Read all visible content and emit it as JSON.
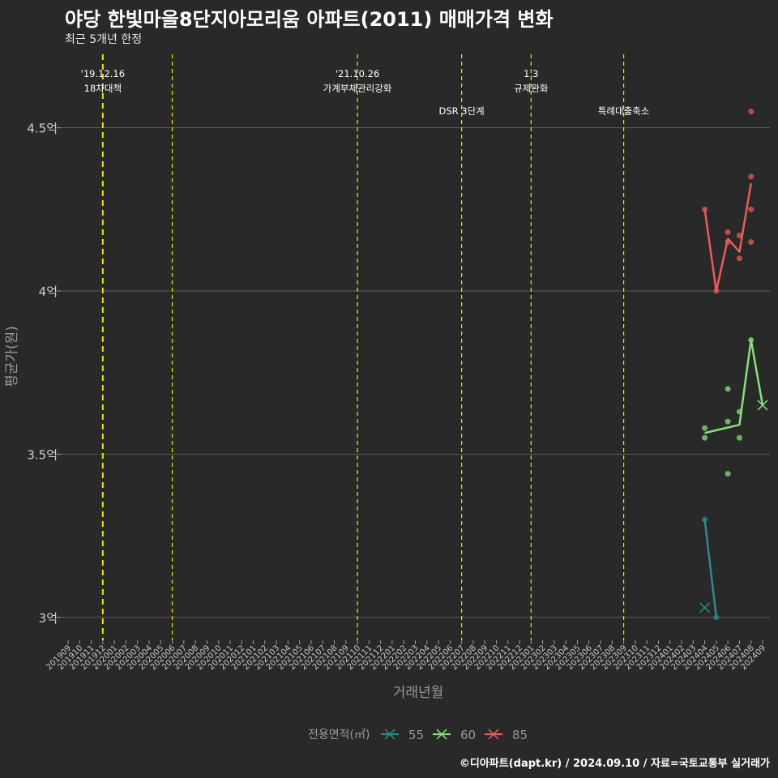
{
  "header": {
    "title": "야당 한빛마을8단지아모리움 아파트(2011) 매매가격 변화",
    "subtitle": "최근 5개년 한정"
  },
  "caption": "©디아파트(dapt.kr) / 2024.09.10 / 자료=국토교통부 실거래가",
  "colors": {
    "background": "#292929",
    "grid": "#5a5a5a",
    "event_line": "#e8e800",
    "series_55": "#2a8c8c",
    "series_60": "#86e07a",
    "series_85": "#e85c5c"
  },
  "chart_data": {
    "type": "line",
    "title": "야당 한빛마을8단지아모리움 아파트(2011) 매매가격 변화",
    "xlabel": "거래년월",
    "ylabel": "평균가(원)",
    "ylim": [
      2.93,
      4.73
    ],
    "yticks": [
      {
        "value": 3.0,
        "label": "3억"
      },
      {
        "value": 3.5,
        "label": "3.5억"
      },
      {
        "value": 4.0,
        "label": "4억"
      },
      {
        "value": 4.5,
        "label": "4.5억"
      }
    ],
    "categories": [
      "201909",
      "201910",
      "201911",
      "201912",
      "202001",
      "202002",
      "202003",
      "202004",
      "202005",
      "202006",
      "202007",
      "202008",
      "202009",
      "202010",
      "202011",
      "202012",
      "202101",
      "202102",
      "202103",
      "202104",
      "202105",
      "202106",
      "202107",
      "202108",
      "202109",
      "202110",
      "202111",
      "202112",
      "202201",
      "202202",
      "202203",
      "202204",
      "202205",
      "202206",
      "202207",
      "202208",
      "202209",
      "202210",
      "202211",
      "202212",
      "202301",
      "202302",
      "202303",
      "202304",
      "202305",
      "202306",
      "202307",
      "202308",
      "202309",
      "202310",
      "202311",
      "202312",
      "202401",
      "202402",
      "202403",
      "202404",
      "202405",
      "202406",
      "202407",
      "202408",
      "202409"
    ],
    "events": [
      {
        "x": "201912",
        "label": "'19.12.16\n18차대책",
        "thick": true
      },
      {
        "x": "202006",
        "label": "",
        "thick": false
      },
      {
        "x": "202110",
        "label": "'21.10.26\n가계부채관리강화",
        "thick": false
      },
      {
        "x": "202207",
        "label": "DSR 3단계",
        "thick": false
      },
      {
        "x": "202301",
        "label": "1.3\n규제완화",
        "thick": false
      },
      {
        "x": "202309",
        "label": "특례대출축소",
        "thick": false
      }
    ],
    "legend": {
      "title": "전용면적(㎡)",
      "position": "bottom"
    },
    "series": [
      {
        "name": "55",
        "color": "#2a8c8c",
        "line": [
          {
            "x": "202404",
            "y": 3.3
          },
          {
            "x": "202405",
            "y": 3.0
          }
        ],
        "points": [
          {
            "x": "202404",
            "y": 3.3
          },
          {
            "x": "202405",
            "y": 3.0
          }
        ],
        "crosses": [
          {
            "x": "202404",
            "y": 3.03
          }
        ]
      },
      {
        "name": "60",
        "color": "#86e07a",
        "line": [
          {
            "x": "202404",
            "y": 3.565
          },
          {
            "x": "202407",
            "y": 3.59
          },
          {
            "x": "202408",
            "y": 3.85
          },
          {
            "x": "202409",
            "y": 3.65
          }
        ],
        "points": [
          {
            "x": "202404",
            "y": 3.58
          },
          {
            "x": "202404",
            "y": 3.55
          },
          {
            "x": "202406",
            "y": 3.7
          },
          {
            "x": "202406",
            "y": 3.6
          },
          {
            "x": "202406",
            "y": 3.44
          },
          {
            "x": "202407",
            "y": 3.63
          },
          {
            "x": "202407",
            "y": 3.55
          },
          {
            "x": "202408",
            "y": 3.85
          }
        ],
        "crosses": [
          {
            "x": "202409",
            "y": 3.65
          }
        ]
      },
      {
        "name": "85",
        "color": "#e85c5c",
        "line": [
          {
            "x": "202404",
            "y": 4.25
          },
          {
            "x": "202405",
            "y": 4.0
          },
          {
            "x": "202406",
            "y": 4.16
          },
          {
            "x": "202407",
            "y": 4.12
          },
          {
            "x": "202408",
            "y": 4.33
          }
        ],
        "points": [
          {
            "x": "202404",
            "y": 4.25
          },
          {
            "x": "202405",
            "y": 4.0
          },
          {
            "x": "202406",
            "y": 4.18
          },
          {
            "x": "202406",
            "y": 4.15
          },
          {
            "x": "202407",
            "y": 4.17
          },
          {
            "x": "202407",
            "y": 4.1
          },
          {
            "x": "202408",
            "y": 4.55
          },
          {
            "x": "202408",
            "y": 4.35
          },
          {
            "x": "202408",
            "y": 4.25
          },
          {
            "x": "202408",
            "y": 4.15
          }
        ],
        "crosses": []
      }
    ]
  }
}
